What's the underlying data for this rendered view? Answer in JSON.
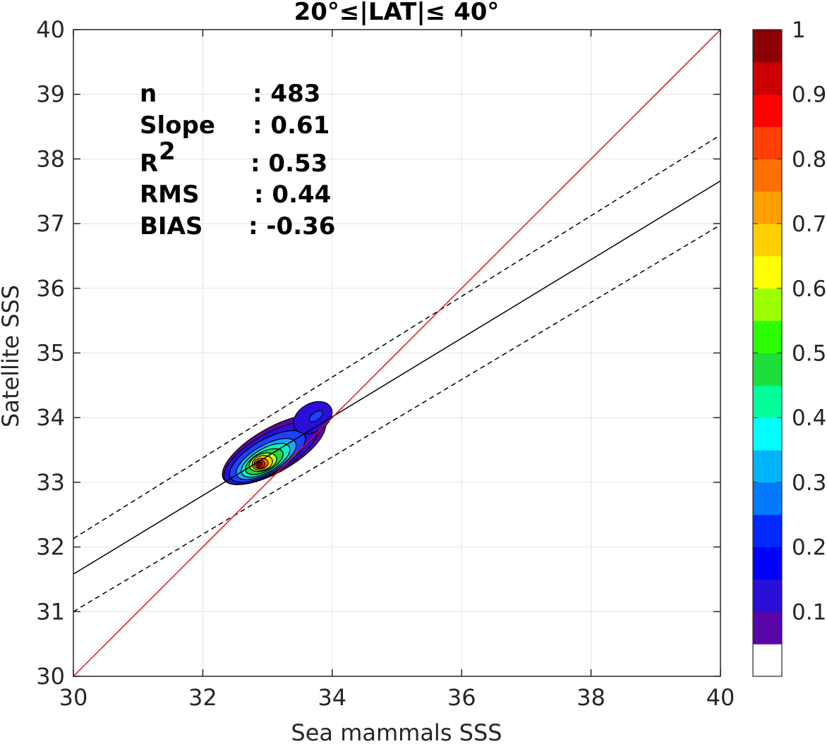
{
  "chart_data": {
    "type": "scatter",
    "title": "20°≤|LAT|≤ 40°",
    "xlabel": "Sea mammals SSS",
    "ylabel": "Satellite SSS",
    "xlim": [
      30,
      40
    ],
    "ylim": [
      30,
      40
    ],
    "xticks": [
      "30",
      "32",
      "34",
      "36",
      "38",
      "40"
    ],
    "yticks": [
      "30",
      "31",
      "32",
      "33",
      "34",
      "35",
      "36",
      "37",
      "38",
      "39",
      "40"
    ],
    "grid": true,
    "stats": [
      {
        "name": "n",
        "value": ": 483"
      },
      {
        "name": "Slope",
        "value": ": 0.61"
      },
      {
        "name": "R",
        "sup": "2",
        "value": ": 0.53"
      },
      {
        "name": "RMS",
        "value": ": 0.44"
      },
      {
        "name": "BIAS",
        "value": ": -0.36"
      }
    ],
    "lines": {
      "identity": {
        "color": "#ff0000",
        "x": [
          30,
          40
        ],
        "y": [
          30,
          40
        ]
      },
      "regression": {
        "color": "#000000",
        "style": "solid",
        "x": [
          30,
          40
        ],
        "y": [
          31.58,
          37.66
        ]
      },
      "upper_bound": {
        "color": "#000000",
        "style": "dashed",
        "x": [
          30,
          40
        ],
        "y": [
          32.13,
          38.37
        ]
      },
      "lower_bound": {
        "color": "#000000",
        "style": "dashed",
        "x": [
          30,
          40
        ],
        "y": [
          31.0,
          36.98
        ]
      }
    },
    "density_contours": {
      "peak": {
        "x": 32.88,
        "y": 33.28
      },
      "levels": [
        {
          "level": 0.05,
          "color": "#5a06a8",
          "cx": 33.1,
          "cy": 33.5,
          "rx": 0.9,
          "ry": 0.34,
          "rot": 30
        },
        {
          "level": 0.1,
          "color": "#2a0fd8",
          "cx": 33.05,
          "cy": 33.45,
          "rx": 0.82,
          "ry": 0.3,
          "rot": 30
        },
        {
          "level": 0.2,
          "color": "#1e40ff",
          "cx": 33.0,
          "cy": 33.4,
          "rx": 0.66,
          "ry": 0.26,
          "rot": 30
        },
        {
          "level": 0.3,
          "color": "#1aa8ff",
          "cx": 32.98,
          "cy": 33.36,
          "rx": 0.52,
          "ry": 0.21,
          "rot": 30
        },
        {
          "level": 0.4,
          "color": "#10f0c0",
          "cx": 32.97,
          "cy": 33.34,
          "rx": 0.42,
          "ry": 0.18,
          "rot": 30
        },
        {
          "level": 0.5,
          "color": "#22d840",
          "cx": 32.95,
          "cy": 33.32,
          "rx": 0.32,
          "ry": 0.15,
          "rot": 28
        },
        {
          "level": 0.6,
          "color": "#b8ff10",
          "cx": 32.93,
          "cy": 33.31,
          "rx": 0.22,
          "ry": 0.13,
          "rot": 20
        },
        {
          "level": 0.7,
          "color": "#ffd000",
          "cx": 32.92,
          "cy": 33.3,
          "rx": 0.16,
          "ry": 0.11,
          "rot": 15
        },
        {
          "level": 0.8,
          "color": "#ff7a00",
          "cx": 32.9,
          "cy": 33.29,
          "rx": 0.11,
          "ry": 0.08,
          "rot": 10
        },
        {
          "level": 0.9,
          "color": "#ff1a00",
          "cx": 32.89,
          "cy": 33.28,
          "rx": 0.07,
          "ry": 0.06,
          "rot": 0
        },
        {
          "level": 1.0,
          "color": "#8b0000",
          "cx": 32.88,
          "cy": 33.28,
          "rx": 0.035,
          "ry": 0.035,
          "rot": 0
        }
      ],
      "secondary": {
        "x": 33.8,
        "y": 34.0,
        "color": "#1e40ff"
      }
    },
    "colorbar": {
      "ticks": [
        "0.1",
        "0.2",
        "0.3",
        "0.4",
        "0.5",
        "0.6",
        "0.7",
        "0.8",
        "0.9",
        "1"
      ],
      "tick_values": [
        0.1,
        0.2,
        0.3,
        0.4,
        0.5,
        0.6,
        0.7,
        0.8,
        0.9,
        1.0
      ],
      "range": [
        0,
        1
      ],
      "colors": [
        "#ffffff",
        "#5a06a8",
        "#2a0fd8",
        "#0000ff",
        "#0028ff",
        "#0078ff",
        "#00b4ff",
        "#00ffff",
        "#00ff9a",
        "#1ede3c",
        "#2cff00",
        "#9cff00",
        "#ffff00",
        "#ffd000",
        "#ffa000",
        "#ff7000",
        "#ff4000",
        "#ff0000",
        "#cc0000",
        "#8b0000"
      ]
    }
  }
}
